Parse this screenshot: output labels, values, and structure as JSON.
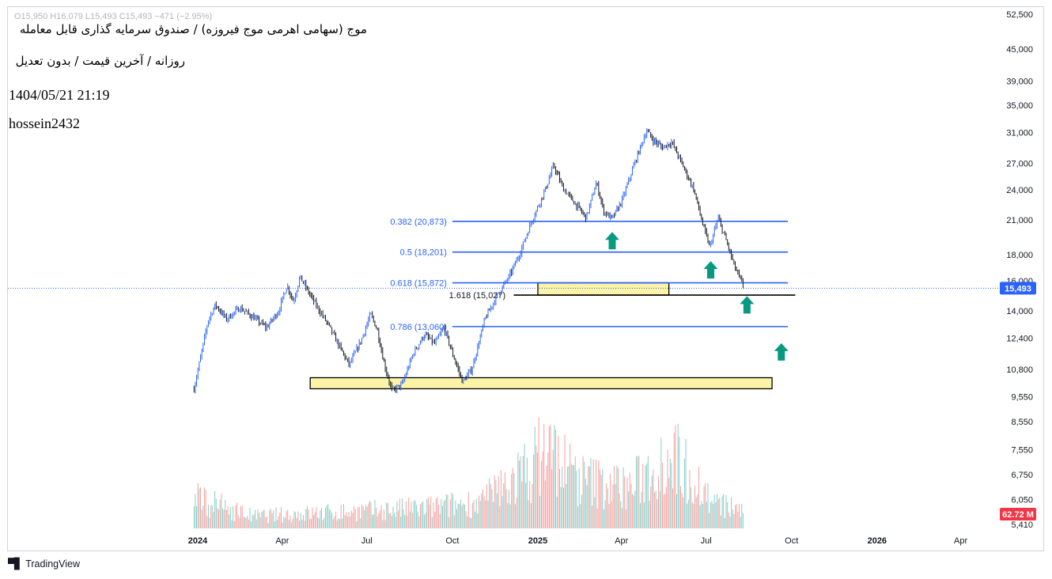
{
  "overlay": {
    "title": "موج (سهامی اهرمی موج فیروزه) / صندوق سرمایه گذاری قابل معامله",
    "subtitle": "روزانه / آخرین قیمت / بدون تعدیل",
    "timestamp": "1404/05/21 21:19",
    "author": "hossein2432",
    "ohlc": "O15,950 H16,079 L15,493 C15,493 −471 (−2.95%)",
    "brand": "TradingView"
  },
  "chart_data": {
    "type": "candlestick",
    "y_scale": "log",
    "ylim": [
      5410,
      52500
    ],
    "y_ticks": [
      "52,500",
      "45,000",
      "39,000",
      "35,000",
      "31,000",
      "27,000",
      "24,000",
      "21,000",
      "18,000",
      "16,000",
      "14,000",
      "12,400",
      "10,800",
      "9,550",
      "8,550",
      "7,550",
      "6,750",
      "6,050",
      "5,410"
    ],
    "x_ticks": [
      "2024",
      "Apr",
      "Jul",
      "Oct",
      "2025",
      "Apr",
      "Jul",
      "Oct",
      "2026",
      "Apr"
    ],
    "last_price": {
      "label": "15,493",
      "value": 15493
    },
    "volume_badge": "62.72 M",
    "price_path": [
      [
        "2023-12-28",
        9900
      ],
      [
        "2024-01-05",
        11600
      ],
      [
        "2024-01-12",
        13400
      ],
      [
        "2024-01-20",
        14400
      ],
      [
        "2024-02-01",
        13500
      ],
      [
        "2024-02-15",
        14200
      ],
      [
        "2024-03-01",
        13600
      ],
      [
        "2024-03-15",
        13000
      ],
      [
        "2024-03-28",
        14000
      ],
      [
        "2024-04-06",
        15700
      ],
      [
        "2024-04-13",
        14600
      ],
      [
        "2024-04-20",
        16300
      ],
      [
        "2024-05-05",
        14600
      ],
      [
        "2024-05-20",
        13200
      ],
      [
        "2024-06-01",
        12000
      ],
      [
        "2024-06-12",
        11000
      ],
      [
        "2024-06-25",
        12300
      ],
      [
        "2024-07-05",
        13800
      ],
      [
        "2024-07-12",
        12900
      ],
      [
        "2024-07-20",
        11000
      ],
      [
        "2024-07-28",
        9800
      ],
      [
        "2024-08-08",
        10100
      ],
      [
        "2024-08-20",
        11600
      ],
      [
        "2024-09-01",
        12600
      ],
      [
        "2024-09-12",
        12100
      ],
      [
        "2024-09-22",
        13000
      ],
      [
        "2024-10-01",
        11600
      ],
      [
        "2024-10-12",
        10200
      ],
      [
        "2024-10-22",
        10800
      ],
      [
        "2024-11-05",
        13500
      ],
      [
        "2024-11-18",
        15000
      ],
      [
        "2024-12-01",
        16300
      ],
      [
        "2024-12-12",
        18000
      ],
      [
        "2024-12-25",
        20800
      ],
      [
        "2025-01-10",
        24300
      ],
      [
        "2025-01-18",
        26800
      ],
      [
        "2025-01-28",
        24200
      ],
      [
        "2025-02-10",
        22600
      ],
      [
        "2025-02-22",
        21200
      ],
      [
        "2025-03-05",
        24800
      ],
      [
        "2025-03-13",
        21800
      ],
      [
        "2025-03-22",
        21100
      ],
      [
        "2025-04-02",
        23000
      ],
      [
        "2025-04-15",
        27000
      ],
      [
        "2025-04-28",
        31300
      ],
      [
        "2025-05-05",
        30000
      ],
      [
        "2025-05-15",
        29000
      ],
      [
        "2025-05-25",
        29700
      ],
      [
        "2025-06-05",
        27000
      ],
      [
        "2025-06-18",
        24000
      ],
      [
        "2025-06-28",
        20400
      ],
      [
        "2025-07-05",
        18600
      ],
      [
        "2025-07-14",
        21200
      ],
      [
        "2025-07-22",
        19300
      ],
      [
        "2025-08-01",
        17000
      ],
      [
        "2025-08-11",
        15493
      ]
    ],
    "volume_profile": [
      [
        "2023-12-28",
        6.9
      ],
      [
        "2024-03-01",
        6.0
      ],
      [
        "2024-06-01",
        6.2
      ],
      [
        "2024-09-01",
        6.4
      ],
      [
        "2024-11-01",
        6.7
      ],
      [
        "2024-12-20",
        8.2
      ],
      [
        "2025-01-10",
        9.4
      ],
      [
        "2025-02-15",
        7.8
      ],
      [
        "2025-04-10",
        7.4
      ],
      [
        "2025-05-25",
        9.1
      ],
      [
        "2025-07-10",
        6.6
      ],
      [
        "2025-08-11",
        6.3
      ]
    ],
    "fibonacci": [
      {
        "label": "0.382 (20,873)",
        "value": 20873
      },
      {
        "label": "0.5 (18,201)",
        "value": 18201
      },
      {
        "label": "0.618 (15,872)",
        "value": 15872
      },
      {
        "label": "0.786 (13,060)",
        "value": 13060
      }
    ],
    "extension": {
      "label": "1.618 (15,027)",
      "value": 15027
    },
    "zones": [
      {
        "from": "2024-05-01",
        "to": "2025-09-10",
        "low": 9900,
        "high": 10400,
        "color": "#fbf3a5"
      },
      {
        "from": "2025-01-01",
        "to": "2025-05-22",
        "low": 15027,
        "high": 15872,
        "color": "#fbf3a5"
      }
    ],
    "arrows": [
      {
        "date": "2025-03-22",
        "value": 19700
      },
      {
        "date": "2025-07-06",
        "value": 17300
      },
      {
        "date": "2025-08-14",
        "value": 14800
      },
      {
        "date": "2025-09-20",
        "value": 12000
      }
    ],
    "colors": {
      "up": "#2962ff",
      "down": "#131722",
      "fib": "#2962ff",
      "arrow": "#089981",
      "vol_up": "#26a69a",
      "vol_down": "#ef5350",
      "badge": "#f23645"
    }
  }
}
